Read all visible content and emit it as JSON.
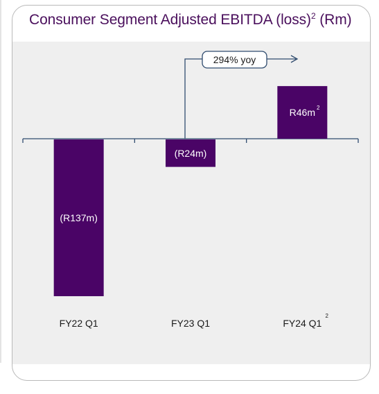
{
  "title": {
    "text": "Consumer Segment Adjusted EBITDA (loss)",
    "superscript": "2",
    "unit": "(Rm)"
  },
  "annotation": {
    "yoy_label": "294% yoy"
  },
  "colors": {
    "bar": "#4a0466",
    "title": "#4a0f5c",
    "plot_background": "#efefef",
    "axis": "#2f4b6e"
  },
  "chart_data": {
    "type": "bar",
    "title": "Consumer Segment Adjusted EBITDA (loss)2 (Rm)",
    "xlabel": "",
    "ylabel": "",
    "categories": [
      "FY22 Q1",
      "FY23 Q1",
      "FY24 Q1"
    ],
    "category_footnotes": [
      "",
      "",
      "2"
    ],
    "values": [
      -137,
      -24,
      46
    ],
    "data_labels": [
      "(R137m)",
      "(R24m)",
      "R46m"
    ],
    "data_label_footnotes": [
      "",
      "",
      "2"
    ],
    "ylim": [
      -140,
      60
    ],
    "grid": false,
    "legend": "none"
  }
}
